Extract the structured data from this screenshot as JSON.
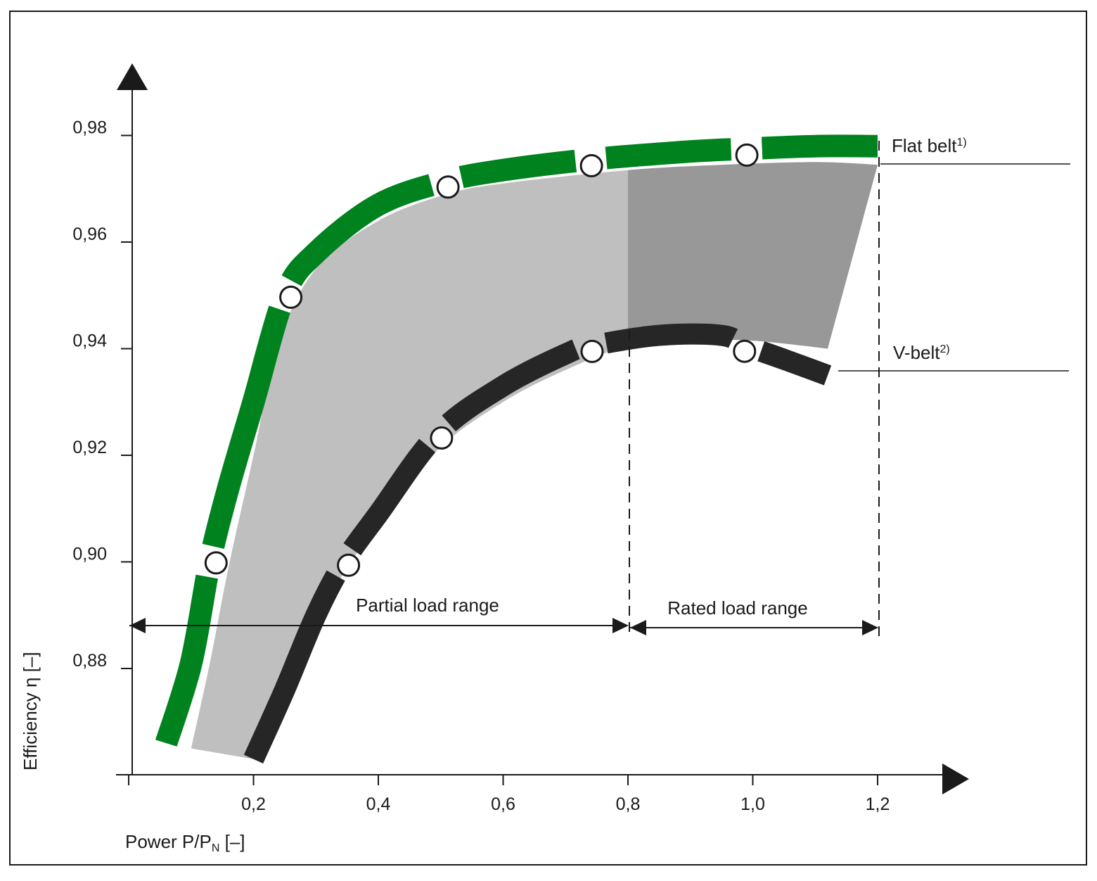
{
  "chart_data": {
    "type": "area",
    "title": "",
    "xlabel": "Power P/P",
    "xlabel_subscript": "N",
    "xlabel_suffix": " [–]",
    "ylabel": "Efficiency η [–]",
    "xlim": [
      0,
      1.2
    ],
    "ylim": [
      0.86,
      0.985
    ],
    "x_ticks": [
      0.2,
      0.4,
      0.6,
      0.8,
      1.0,
      1.2
    ],
    "x_tick_labels": [
      "0,2",
      "0,4",
      "0,6",
      "0,8",
      "1,0",
      "1,2"
    ],
    "y_ticks": [
      0.88,
      0.9,
      0.92,
      0.94,
      0.96,
      0.98
    ],
    "y_tick_labels": [
      "0,88",
      "0,90",
      "0,92",
      "0,94",
      "0,96",
      "0,98"
    ],
    "grid": false,
    "colors": {
      "flat_belt": "#00821e",
      "v_belt": "#262626",
      "band_partial": "#bfbfbf",
      "band_rated": "#989898",
      "axis": "#1a1a1a",
      "marker_fill": "#ffffff"
    },
    "series": [
      {
        "name": "Flat belt",
        "name_superscript": "1)",
        "x": [
          0.06,
          0.1,
          0.13,
          0.16,
          0.2,
          0.25,
          0.3,
          0.4,
          0.51,
          0.6,
          0.74,
          0.9,
          0.99,
          1.1,
          1.2
        ],
        "values": [
          0.866,
          0.881,
          0.9,
          0.914,
          0.93,
          0.95,
          0.958,
          0.967,
          0.9715,
          0.9735,
          0.9755,
          0.977,
          0.9775,
          0.978,
          0.978
        ],
        "markers_x": [
          0.13,
          0.25,
          0.51,
          0.74,
          0.99
        ]
      },
      {
        "name": "V-belt",
        "name_superscript": "2)",
        "x": [
          0.2,
          0.25,
          0.3,
          0.345,
          0.4,
          0.495,
          0.6,
          0.7,
          0.74,
          0.85,
          0.95,
          0.99,
          1.05,
          1.12
        ],
        "values": [
          0.863,
          0.876,
          0.89,
          0.9,
          0.909,
          0.924,
          0.933,
          0.939,
          0.9405,
          0.9425,
          0.9425,
          0.9405,
          0.938,
          0.935
        ],
        "markers_x": [
          0.345,
          0.495,
          0.74,
          0.99
        ]
      }
    ],
    "band": {
      "upper_x": [
        0.1,
        0.13,
        0.16,
        0.2,
        0.24,
        0.3,
        0.4,
        0.51,
        0.6,
        0.8,
        0.95,
        1.1,
        1.2
      ],
      "upper_y": [
        0.865,
        0.881,
        0.899,
        0.92,
        0.941,
        0.955,
        0.964,
        0.969,
        0.971,
        0.9735,
        0.9745,
        0.975,
        0.9745
      ],
      "lower_x": [
        0.2,
        0.25,
        0.3,
        0.345,
        0.4,
        0.495,
        0.6,
        0.7,
        0.8,
        0.9,
        1.0,
        1.12
      ],
      "lower_y": [
        0.863,
        0.876,
        0.888,
        0.898,
        0.907,
        0.921,
        0.93,
        0.936,
        0.9405,
        0.9415,
        0.9415,
        0.94
      ],
      "rated_from_x": 0.8
    },
    "annotations": [
      {
        "text": "Partial load range",
        "x_from": 0.0,
        "x_to": 0.8,
        "y": 0.888
      },
      {
        "text": "Rated load range",
        "x_from": 0.8,
        "x_to": 1.2,
        "y": 0.888
      }
    ]
  }
}
